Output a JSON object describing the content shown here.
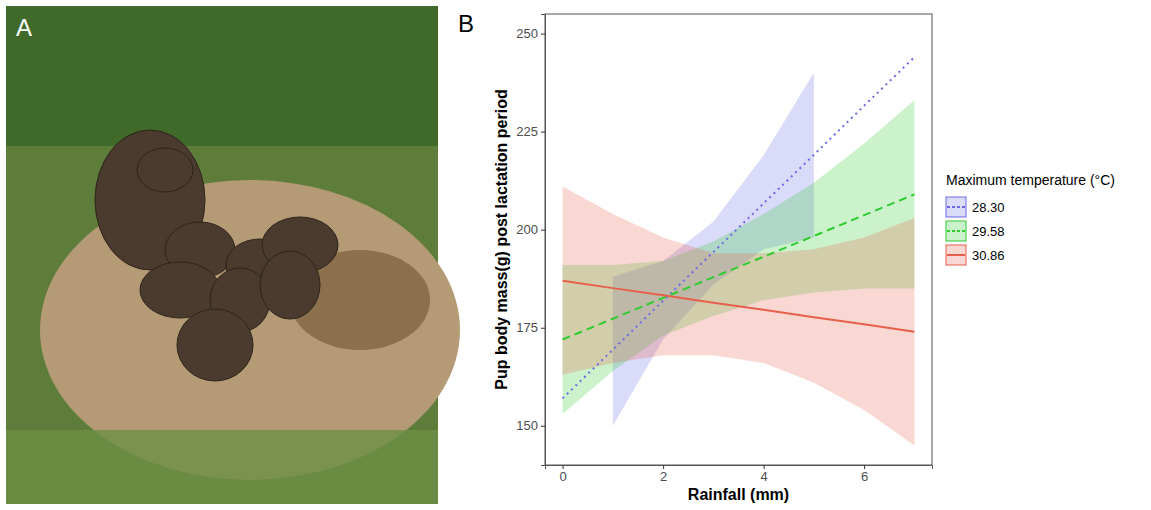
{
  "panel_labels": [
    "A",
    "B"
  ],
  "chart_data": {
    "type": "line",
    "x_label": "Rainfall (mm)",
    "y_label": "Pup body mass(g) post lactation period",
    "legend_title": "Maximum temperature (°C)",
    "legend": "right",
    "grid": false,
    "xlim": [
      -0.35,
      7.35
    ],
    "xticks": [
      0,
      2,
      4,
      6
    ],
    "ylim": [
      140,
      255
    ],
    "yticks": [
      150,
      175,
      200,
      225,
      250
    ],
    "x": [
      0,
      1,
      2,
      3,
      4,
      5,
      6,
      7
    ],
    "series": [
      {
        "name": "28.30",
        "color": "#6a6ae6",
        "line_style": "dotted",
        "values": [
          157,
          169.4,
          181.9,
          194.3,
          206.7,
          219.1,
          231.6,
          244
        ],
        "lower": [
          null,
          150,
          172,
          186,
          195,
          198,
          null,
          null
        ],
        "upper": [
          null,
          188,
          192,
          202,
          219,
          240,
          null,
          null
        ]
      },
      {
        "name": "29.58",
        "color": "#2fcc2f",
        "line_style": "dashed",
        "values": [
          172,
          177.3,
          182.6,
          187.9,
          193.1,
          198.4,
          203.7,
          209
        ],
        "lower": [
          153,
          164,
          173,
          178,
          182,
          184,
          185,
          185
        ],
        "upper": [
          191,
          191,
          192,
          197,
          204,
          212,
          222,
          233
        ]
      },
      {
        "name": "30.86",
        "color": "#e8604c",
        "line_style": "solid",
        "values": [
          187,
          185.1,
          183.3,
          181.4,
          179.6,
          177.7,
          175.9,
          174
        ],
        "lower": [
          163,
          166,
          168,
          168,
          166,
          161,
          154,
          145
        ],
        "upper": [
          211,
          204,
          198,
          194,
          194,
          195,
          198,
          203
        ]
      }
    ]
  }
}
